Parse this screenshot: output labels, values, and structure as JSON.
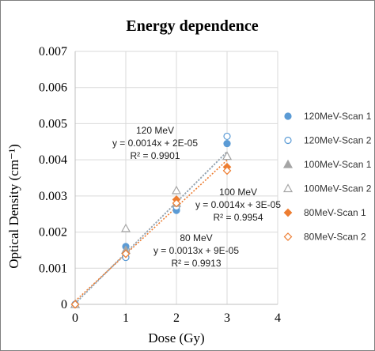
{
  "chart_data": {
    "type": "scatter",
    "title": "Energy dependence",
    "xlabel": "Dose (Gy)",
    "ylabel": "Optical Density (cm⁻¹)",
    "xlim": [
      0,
      4
    ],
    "ylim": [
      0,
      0.007
    ],
    "xticks": [
      "0",
      "1",
      "2",
      "3",
      "4"
    ],
    "yticks": [
      "0",
      "0.001",
      "0.002",
      "0.003",
      "0.004",
      "0.005",
      "0.006",
      "0.007"
    ],
    "grid": true,
    "legend_position": "right",
    "series": [
      {
        "name": "120MeV-Scan 1",
        "marker": "circle",
        "filled": true,
        "color": "#5b9bd5",
        "x": [
          0,
          1,
          2,
          3
        ],
        "y": [
          0,
          0.0016,
          0.0026,
          0.00445
        ]
      },
      {
        "name": "120MeV-Scan 2",
        "marker": "circle",
        "filled": false,
        "color": "#5b9bd5",
        "x": [
          0,
          1,
          2,
          3
        ],
        "y": [
          0,
          0.0013,
          0.0027,
          0.00465
        ]
      },
      {
        "name": "100MeV-Scan 1",
        "marker": "triangle",
        "filled": true,
        "color": "#a5a5a5",
        "x": [
          0,
          1,
          2,
          3
        ],
        "y": [
          0,
          0.0015,
          0.0028,
          0.0041
        ]
      },
      {
        "name": "100MeV-Scan 2",
        "marker": "triangle",
        "filled": false,
        "color": "#a5a5a5",
        "x": [
          0,
          1,
          2,
          3
        ],
        "y": [
          0,
          0.0021,
          0.00315,
          0.0041
        ]
      },
      {
        "name": "80MeV-Scan 1",
        "marker": "diamond",
        "filled": true,
        "color": "#ed7d31",
        "x": [
          0,
          1,
          2,
          3
        ],
        "y": [
          0,
          0.0014,
          0.0029,
          0.0038
        ]
      },
      {
        "name": "80MeV-Scan 2",
        "marker": "diamond",
        "filled": false,
        "color": "#ed7d31",
        "x": [
          0,
          1,
          2,
          3
        ],
        "y": [
          0,
          0.0014,
          0.0028,
          0.0037
        ]
      }
    ],
    "trendlines": [
      {
        "name": "120 MeV",
        "slope": 0.0014,
        "intercept": 2e-05,
        "color": "#5b9bd5",
        "x_range": [
          0,
          3
        ],
        "equation": "y = 0.0014x + 2E-05",
        "r2": "R² = 0.9901"
      },
      {
        "name": "100 MeV",
        "slope": 0.0014,
        "intercept": 3e-05,
        "color": "#a5a5a5",
        "x_range": [
          0,
          3
        ],
        "equation": "y = 0.0014x + 3E-05",
        "r2": "R² = 0.9954"
      },
      {
        "name": "80 MeV",
        "slope": 0.0013,
        "intercept": 9e-05,
        "color": "#ed7d31",
        "x_range": [
          0,
          3
        ],
        "equation": "y = 0.0013x + 9E-05",
        "r2": "R² = 0.9913"
      }
    ]
  }
}
